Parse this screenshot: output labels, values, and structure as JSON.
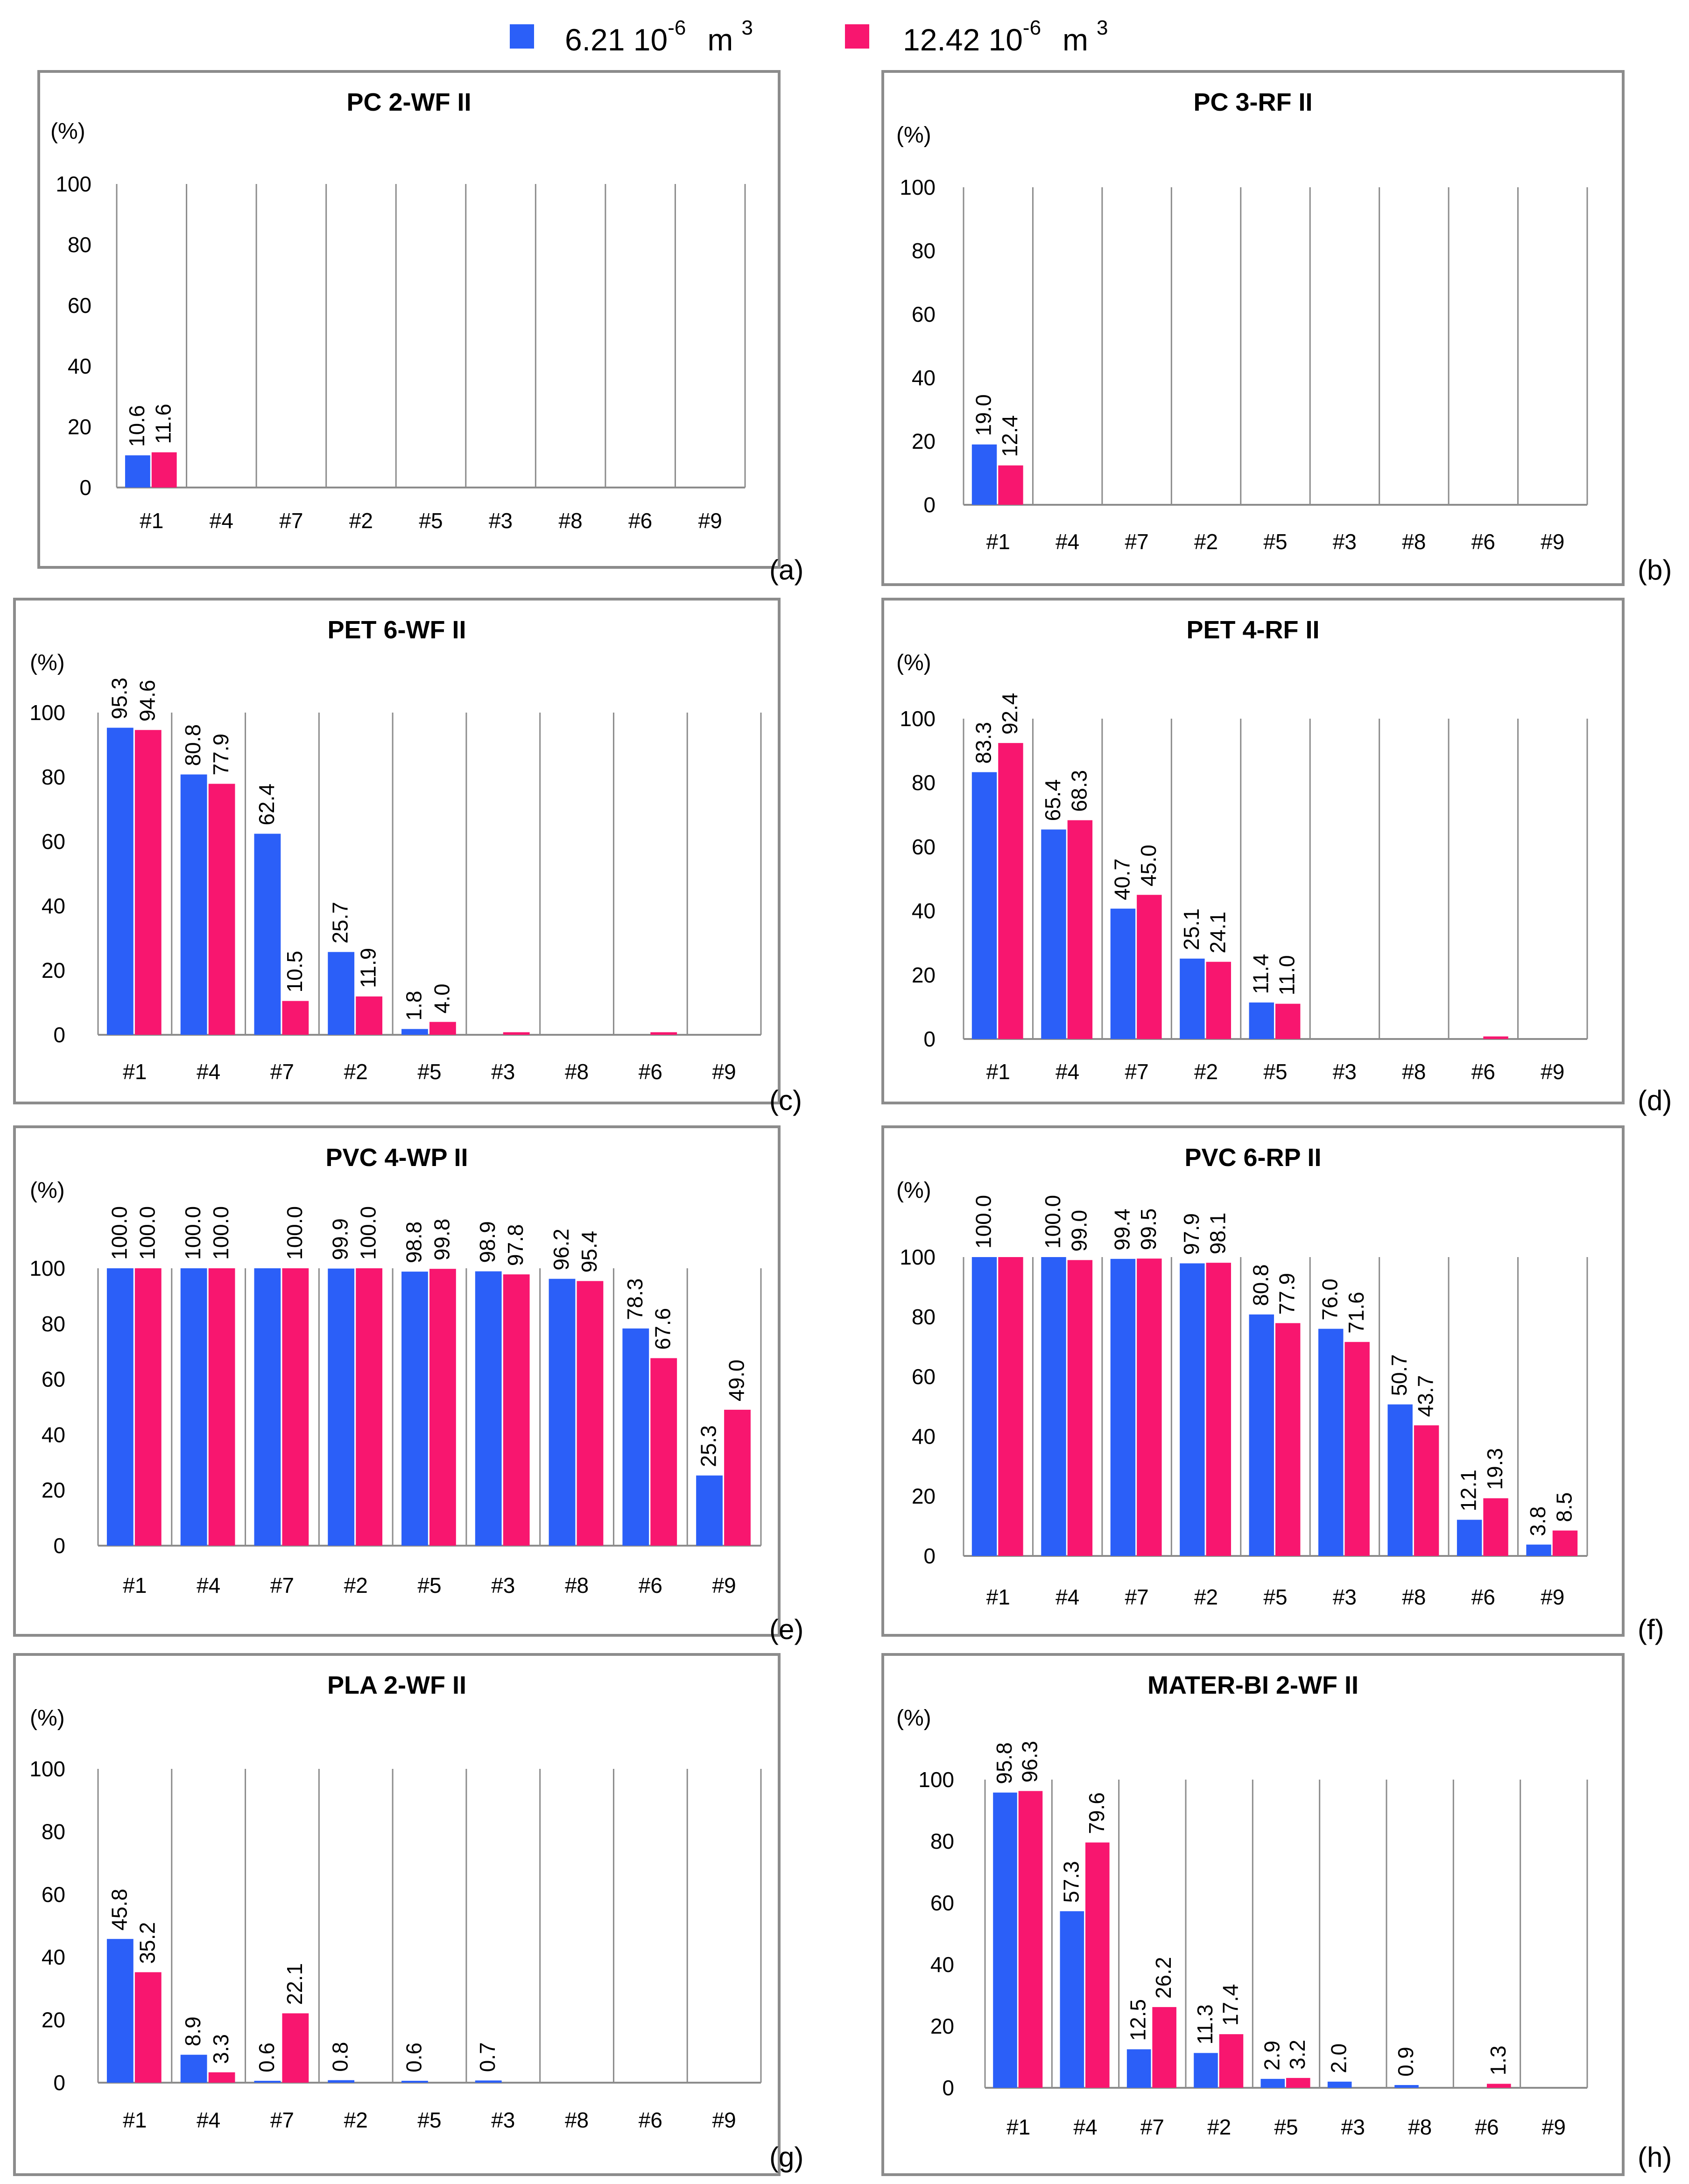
{
  "legend": {
    "series": [
      {
        "name": "6.21 10",
        "exp": "-6",
        "unit": "m",
        "unit_exp": "3",
        "color": "#2b5ff8"
      },
      {
        "name": "12.42 10",
        "exp": "-6",
        "unit": "m",
        "unit_exp": "3",
        "color": "#f8166f"
      }
    ]
  },
  "chart_data": [
    {
      "id": "a",
      "type": "bar",
      "title": "PC 2-WF II",
      "ylabel": "(%)",
      "letter": "(a)",
      "categories": [
        "#1",
        "#4",
        "#7",
        "#2",
        "#5",
        "#3",
        "#8",
        "#6",
        "#9"
      ],
      "yticks": [
        0,
        20,
        40,
        60,
        80,
        100
      ],
      "ylim": [
        0,
        100
      ],
      "grid": "vertical",
      "series": [
        {
          "name": "6.21 10^-6 m^3",
          "values": [
            10.6,
            0,
            0,
            0,
            0,
            0,
            0,
            0,
            0
          ],
          "labels": [
            "10.6",
            "",
            "",
            "",
            "",
            "",
            "",
            "",
            ""
          ]
        },
        {
          "name": "12.42 10^-6 m^3",
          "values": [
            11.6,
            0,
            0,
            0,
            0,
            0,
            0,
            0,
            0
          ],
          "labels": [
            "11.6",
            "",
            "",
            "",
            "",
            "",
            "",
            "",
            ""
          ]
        }
      ]
    },
    {
      "id": "b",
      "type": "bar",
      "title": "PC 3-RF II",
      "ylabel": "(%)",
      "letter": "(b)",
      "categories": [
        "#1",
        "#4",
        "#7",
        "#2",
        "#5",
        "#3",
        "#8",
        "#6",
        "#9"
      ],
      "yticks": [
        0,
        20,
        40,
        60,
        80,
        100
      ],
      "ylim": [
        0,
        100
      ],
      "grid": "vertical",
      "series": [
        {
          "name": "6.21 10^-6 m^3",
          "values": [
            19.0,
            0,
            0,
            0,
            0,
            0,
            0,
            0,
            0
          ],
          "labels": [
            "19.0",
            "",
            "",
            "",
            "",
            "",
            "",
            "",
            ""
          ]
        },
        {
          "name": "12.42 10^-6 m^3",
          "values": [
            12.4,
            0,
            0,
            0,
            0,
            0,
            0,
            0,
            0
          ],
          "labels": [
            "12.4",
            "",
            "",
            "",
            "",
            "",
            "",
            "",
            ""
          ]
        }
      ]
    },
    {
      "id": "c",
      "type": "bar",
      "title": "PET 6-WF II",
      "ylabel": "(%)",
      "letter": "(c)",
      "categories": [
        "#1",
        "#4",
        "#7",
        "#2",
        "#5",
        "#3",
        "#8",
        "#6",
        "#9"
      ],
      "yticks": [
        0,
        20,
        40,
        60,
        80,
        100
      ],
      "ylim": [
        0,
        100
      ],
      "grid": "vertical",
      "series": [
        {
          "name": "6.21 10^-6 m^3",
          "values": [
            95.3,
            80.8,
            62.4,
            25.7,
            1.8,
            0,
            0,
            0,
            0
          ],
          "labels": [
            "95.3",
            "80.8",
            "62.4",
            "25.7",
            "1.8",
            "",
            "",
            "",
            ""
          ]
        },
        {
          "name": "12.42 10^-6 m^3",
          "values": [
            94.6,
            77.9,
            10.5,
            11.9,
            4.0,
            0.8,
            0,
            0.8,
            0
          ],
          "labels": [
            "94.6",
            "77.9",
            "10.5",
            "11.9",
            "4.0",
            "",
            "",
            "",
            ""
          ]
        }
      ]
    },
    {
      "id": "d",
      "type": "bar",
      "title": "PET 4-RF II",
      "ylabel": "(%)",
      "letter": "(d)",
      "categories": [
        "#1",
        "#4",
        "#7",
        "#2",
        "#5",
        "#3",
        "#8",
        "#6",
        "#9"
      ],
      "yticks": [
        0,
        20,
        40,
        60,
        80,
        100
      ],
      "ylim": [
        0,
        100
      ],
      "grid": "vertical",
      "series": [
        {
          "name": "6.21 10^-6 m^3",
          "values": [
            83.3,
            65.4,
            40.7,
            25.1,
            11.4,
            0,
            0,
            0,
            0
          ],
          "labels": [
            "83.3",
            "65.4",
            "40.7",
            "25.1",
            "11.4",
            "",
            "",
            "",
            ""
          ]
        },
        {
          "name": "12.42 10^-6 m^3",
          "values": [
            92.4,
            68.3,
            45.0,
            24.1,
            11.0,
            0,
            0,
            0.8,
            0
          ],
          "labels": [
            "92.4",
            "68.3",
            "45.0",
            "24.1",
            "11.0",
            "",
            "",
            "",
            ""
          ]
        }
      ]
    },
    {
      "id": "e",
      "type": "bar",
      "title": "PVC 4-WP II",
      "ylabel": "(%)",
      "letter": "(e)",
      "categories": [
        "#1",
        "#4",
        "#7",
        "#2",
        "#5",
        "#3",
        "#8",
        "#6",
        "#9"
      ],
      "yticks": [
        0,
        20,
        40,
        60,
        80,
        100
      ],
      "ylim": [
        0,
        100
      ],
      "grid": "vertical",
      "series": [
        {
          "name": "6.21 10^-6 m^3",
          "values": [
            100.0,
            100.0,
            100.0,
            99.9,
            98.8,
            98.9,
            96.2,
            78.3,
            25.3
          ],
          "labels": [
            "100.0",
            "100.0",
            "",
            "99.9",
            "98.8",
            "98.9",
            "96.2",
            "78.3",
            "25.3"
          ]
        },
        {
          "name": "12.42 10^-6 m^3",
          "values": [
            100.0,
            100.0,
            100.0,
            100.0,
            99.8,
            97.8,
            95.4,
            67.6,
            49.0
          ],
          "labels": [
            "100.0",
            "100.0",
            "100.0",
            "100.0",
            "99.8",
            "97.8",
            "95.4",
            "67.6",
            "49.0"
          ]
        }
      ]
    },
    {
      "id": "f",
      "type": "bar",
      "title": "PVC 6-RP II",
      "ylabel": "(%)",
      "letter": "(f)",
      "categories": [
        "#1",
        "#4",
        "#7",
        "#2",
        "#5",
        "#3",
        "#8",
        "#6",
        "#9"
      ],
      "yticks": [
        0,
        20,
        40,
        60,
        80,
        100
      ],
      "ylim": [
        0,
        100
      ],
      "grid": "vertical",
      "series": [
        {
          "name": "6.21 10^-6 m^3",
          "values": [
            100.0,
            100.0,
            99.4,
            97.9,
            80.8,
            76.0,
            50.7,
            12.1,
            3.8
          ],
          "labels": [
            "100.0",
            "100.0",
            "99.4",
            "97.9",
            "80.8",
            "76.0",
            "50.7",
            "12.1",
            "3.8"
          ]
        },
        {
          "name": "12.42 10^-6 m^3",
          "values": [
            100.0,
            99.0,
            99.5,
            98.1,
            77.9,
            71.6,
            43.7,
            19.3,
            8.5
          ],
          "labels": [
            "",
            "99.0",
            "99.5",
            "98.1",
            "77.9",
            "71.6",
            "43.7",
            "19.3",
            "8.5"
          ]
        }
      ]
    },
    {
      "id": "g",
      "type": "bar",
      "title": "PLA 2-WF II",
      "ylabel": "(%)",
      "letter": "(g)",
      "categories": [
        "#1",
        "#4",
        "#7",
        "#2",
        "#5",
        "#3",
        "#8",
        "#6",
        "#9"
      ],
      "yticks": [
        0,
        20,
        40,
        60,
        80,
        100
      ],
      "ylim": [
        0,
        100
      ],
      "grid": "vertical",
      "series": [
        {
          "name": "6.21 10^-6 m^3",
          "values": [
            45.8,
            8.9,
            0.6,
            0.8,
            0.6,
            0.7,
            0,
            0,
            0
          ],
          "labels": [
            "45.8",
            "8.9",
            "0.6",
            "0.8",
            "0.6",
            "0.7",
            "",
            "",
            ""
          ]
        },
        {
          "name": "12.42 10^-6 m^3",
          "values": [
            35.2,
            3.3,
            22.1,
            0,
            0,
            0,
            0,
            0,
            0
          ],
          "labels": [
            "35.2",
            "3.3",
            "22.1",
            "",
            "",
            "",
            "",
            "",
            ""
          ]
        }
      ]
    },
    {
      "id": "h",
      "type": "bar",
      "title": "MATER-BI 2-WF II",
      "ylabel": "(%)",
      "letter": "(h)",
      "categories": [
        "#1",
        "#4",
        "#7",
        "#2",
        "#5",
        "#3",
        "#8",
        "#6",
        "#9"
      ],
      "yticks": [
        0,
        20,
        40,
        60,
        80,
        100
      ],
      "ylim": [
        0,
        100
      ],
      "grid": "vertical",
      "series": [
        {
          "name": "6.21 10^-6 m^3",
          "values": [
            95.8,
            57.3,
            12.5,
            11.3,
            2.9,
            2.0,
            0.9,
            0,
            0
          ],
          "labels": [
            "95.8",
            "57.3",
            "12.5",
            "11.3",
            "2.9",
            "2.0",
            "0.9",
            "",
            ""
          ]
        },
        {
          "name": "12.42 10^-6 m^3",
          "values": [
            96.3,
            79.6,
            26.2,
            17.4,
            3.2,
            0,
            0,
            1.3,
            0
          ],
          "labels": [
            "96.3",
            "79.6",
            "26.2",
            "17.4",
            "3.2",
            "",
            "",
            "1.3",
            ""
          ]
        }
      ]
    }
  ]
}
